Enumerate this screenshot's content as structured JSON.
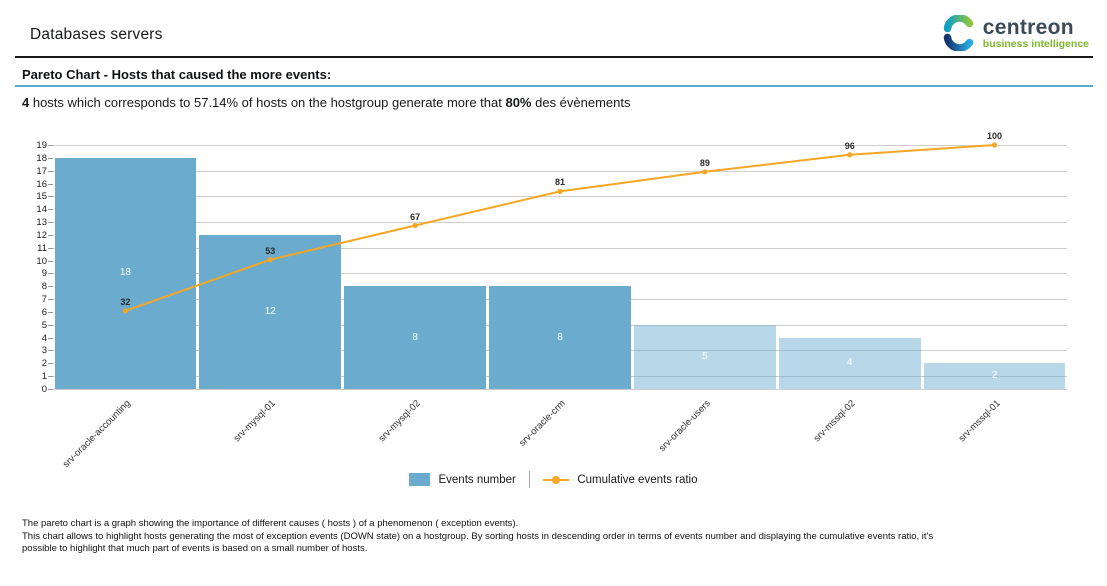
{
  "header": {
    "title": "Databases servers",
    "logo": {
      "name": "centreon",
      "tagline": "business intelligence"
    }
  },
  "section": {
    "heading": "Pareto Chart - Hosts that caused the more events:"
  },
  "summary": {
    "bold1": "4",
    "text1": " hosts which corresponds to 57.14% of hosts on the hostgroup generate more that ",
    "bold2": "80%",
    "text2": " des évènements"
  },
  "chart_data": {
    "type": "bar",
    "subtype": "pareto (bar series + cumulative line)",
    "categories": [
      "srv-oracle-accounting",
      "srv-mysql-01",
      "srv-mysql-02",
      "srv-oracle-crm",
      "srv-oracle-users",
      "srv-mssql-02",
      "srv-mssql-01"
    ],
    "series": [
      {
        "name": "Events number",
        "type": "bar",
        "values": [
          18,
          12,
          8,
          8,
          5,
          4,
          2
        ]
      },
      {
        "name": "Cumulative events ratio",
        "type": "line",
        "unit": "%",
        "values": [
          32,
          53,
          67,
          81,
          89,
          96,
          100
        ]
      }
    ],
    "ylim": [
      0,
      19
    ],
    "y_tick_step": 1,
    "gridlines_at": [
      0,
      1,
      3,
      5,
      7,
      9,
      11,
      13,
      15,
      17,
      19
    ],
    "highlighted_bars": 4,
    "legend_position": "bottom-center",
    "colors": {
      "bar": "#6BACCE",
      "bar_light": "rgba(107,172,206,0.48)",
      "line": "#F5A623",
      "grid": "#CDCDCD",
      "bar_value_label": "#FFFFFF",
      "point_label": "#2B2B2B"
    }
  },
  "footer": {
    "lines": [
      "The pareto chart is a graph showing the importance of different causes ( hosts ) of a phenomenon ( exception events).",
      "This chart allows to highlight hosts generating the most of exception events (DOWN state) on a hostgroup. By sorting hosts in descending order in terms of events number and displaying the cumulative events ratio, it's",
      "possible to highlight that much part of events is based on a small number of hosts."
    ]
  }
}
